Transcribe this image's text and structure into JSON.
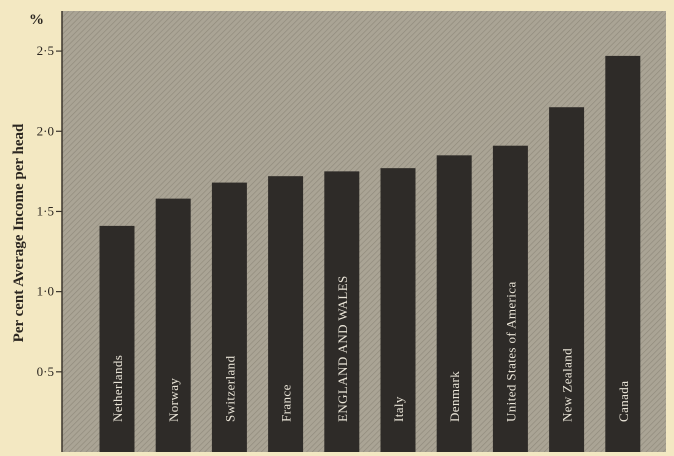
{
  "chart_data": {
    "type": "bar",
    "title": "",
    "xlabel": "",
    "ylabel": "Per cent Average Income per head",
    "y_unit": "%",
    "ylim": [
      0,
      2.75
    ],
    "yticks": [
      {
        "value": 0.5,
        "label": "0·5"
      },
      {
        "value": 1.0,
        "label": "1·0"
      },
      {
        "value": 1.5,
        "label": "1·5"
      },
      {
        "value": 2.0,
        "label": "2·0"
      },
      {
        "value": 2.5,
        "label": "2·5"
      }
    ],
    "categories": [
      "Netherlands",
      "Norway",
      "Switzerland",
      "France",
      "ENGLAND AND WALES",
      "Italy",
      "Denmark",
      "United States of America",
      "New Zealand",
      "Canada"
    ],
    "values": [
      1.41,
      1.58,
      1.68,
      1.72,
      1.75,
      1.77,
      1.85,
      1.91,
      2.15,
      2.47
    ],
    "grid": false,
    "legend": "none",
    "colors": {
      "plot_background": "#a9a394",
      "bar": "#2e2b28",
      "bar_label": "#e9e4d7",
      "paper": "#f3e8c2",
      "ink": "#2b2620"
    }
  }
}
